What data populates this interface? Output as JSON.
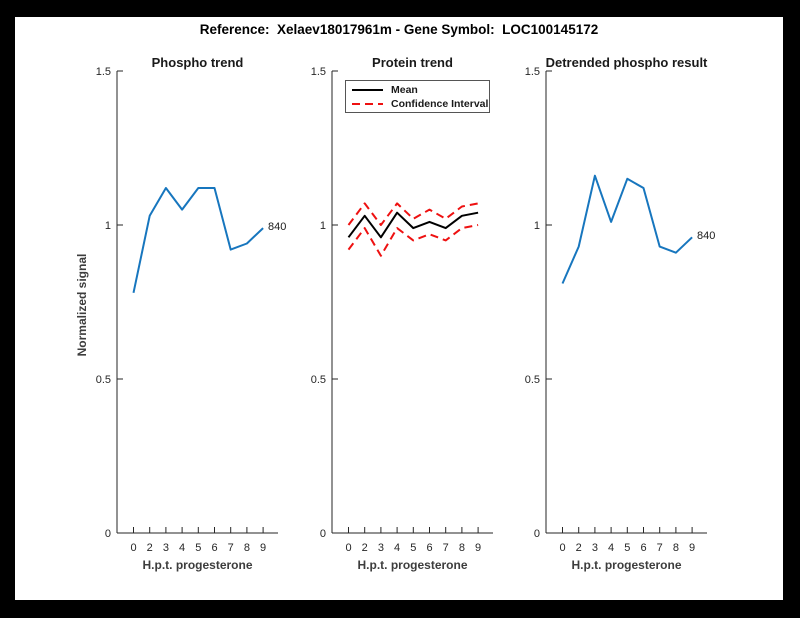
{
  "title": "Reference:  Xelaev18017961m - Gene Symbol:  LOC100145172",
  "ylabel": "Normalized signal",
  "colors": {
    "line_blue": "#1776be",
    "line_black": "#000000",
    "line_red": "#ee1111",
    "frame": "#000000",
    "background": "#ffffff",
    "text": "#262626"
  },
  "chart_data": [
    {
      "type": "line",
      "title": "Phospho trend",
      "xlabel": "H.p.t. progesterone",
      "ylabel": "Normalized signal",
      "categories": [
        "0",
        "2",
        "3",
        "4",
        "5",
        "6",
        "7",
        "8",
        "9"
      ],
      "yticks": [
        "0",
        "0.5",
        "1",
        "1.5"
      ],
      "ylim": [
        0,
        1.5
      ],
      "grid": false,
      "series": [
        {
          "name": "Phospho signal",
          "color": "#1776be",
          "style": "solid",
          "values": [
            0.78,
            1.03,
            1.12,
            1.05,
            1.12,
            1.12,
            0.92,
            0.94,
            0.99
          ]
        }
      ],
      "end_label": "840"
    },
    {
      "type": "line",
      "title": "Protein trend",
      "xlabel": "H.p.t. progesterone",
      "categories": [
        "0",
        "2",
        "3",
        "4",
        "5",
        "6",
        "7",
        "8",
        "9"
      ],
      "yticks": [
        "0",
        "0.5",
        "1",
        "1.5"
      ],
      "ylim": [
        0,
        1.5
      ],
      "grid": false,
      "legend": {
        "position": "top-left",
        "items": [
          {
            "label": "Mean",
            "color": "#000000",
            "style": "solid"
          },
          {
            "label": "Confidence Interval",
            "color": "#ee1111",
            "style": "dashed"
          }
        ]
      },
      "series": [
        {
          "name": "Mean",
          "color": "#000000",
          "style": "solid",
          "values": [
            0.96,
            1.03,
            0.96,
            1.04,
            0.99,
            1.01,
            0.99,
            1.03,
            1.04
          ]
        },
        {
          "name": "Confidence Interval upper",
          "color": "#ee1111",
          "style": "dashed",
          "values": [
            1.0,
            1.07,
            1.0,
            1.07,
            1.02,
            1.05,
            1.02,
            1.06,
            1.07
          ]
        },
        {
          "name": "Confidence Interval lower",
          "color": "#ee1111",
          "style": "dashed",
          "values": [
            0.92,
            0.99,
            0.9,
            0.99,
            0.95,
            0.97,
            0.95,
            0.99,
            1.0
          ]
        }
      ]
    },
    {
      "type": "line",
      "title": "Detrended phospho result",
      "xlabel": "H.p.t. progesterone",
      "categories": [
        "0",
        "2",
        "3",
        "4",
        "5",
        "6",
        "7",
        "8",
        "9"
      ],
      "yticks": [
        "0",
        "0.5",
        "1",
        "1.5"
      ],
      "ylim": [
        0,
        1.5
      ],
      "grid": false,
      "series": [
        {
          "name": "Detrended phospho signal",
          "color": "#1776be",
          "style": "solid",
          "values": [
            0.81,
            0.93,
            1.16,
            1.01,
            1.15,
            1.12,
            0.93,
            0.91,
            0.96
          ]
        }
      ],
      "end_label": "840"
    }
  ]
}
